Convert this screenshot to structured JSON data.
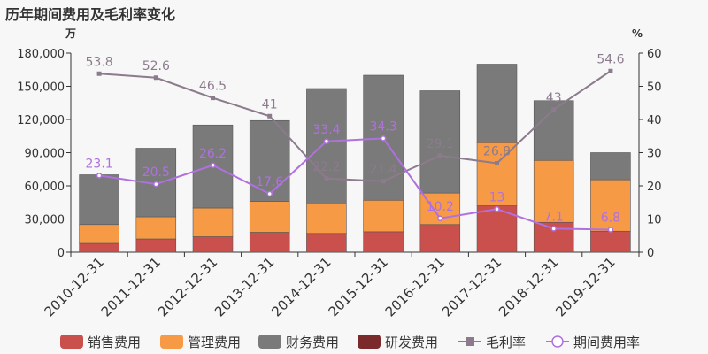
{
  "page": {
    "title": "历年期间费用及毛利率变化"
  },
  "units": {
    "left": "万",
    "right": "%"
  },
  "colors": {
    "sales": "#c9504c",
    "admin": "#f79a46",
    "finance": "#7a7a7a",
    "rd": "#7a2a2a",
    "gross_margin": "#8c7b8c",
    "period_rate": "#b070e0"
  },
  "chart_data": {
    "type": "bar",
    "categories": [
      "2010-12-31",
      "2011-12-31",
      "2012-12-31",
      "2013-12-31",
      "2014-12-31",
      "2015-12-31",
      "2016-12-31",
      "2017-12-31",
      "2018-12-31",
      "2019-12-31"
    ],
    "series": [
      {
        "name": "销售费用",
        "kind": "bar",
        "stack": "cost",
        "values": [
          8000,
          12000,
          14000,
          18000,
          17000,
          18500,
          25000,
          42000,
          27000,
          19000
        ]
      },
      {
        "name": "管理费用",
        "kind": "bar",
        "stack": "cost",
        "values": [
          17000,
          20000,
          26000,
          28000,
          26500,
          28500,
          28500,
          57000,
          56000,
          46500
        ]
      },
      {
        "name": "财务费用",
        "kind": "bar",
        "stack": "cost",
        "values": [
          45000,
          62000,
          75000,
          73000,
          104500,
          113000,
          92500,
          71000,
          54000,
          24500
        ]
      },
      {
        "name": "研发费用",
        "kind": "bar",
        "stack": "cost",
        "values": [
          0,
          0,
          0,
          0,
          0,
          0,
          0,
          0,
          0,
          0
        ]
      },
      {
        "name": "毛利率",
        "kind": "line",
        "axis": "right",
        "values": [
          53.8,
          52.6,
          46.5,
          41,
          22.2,
          21.4,
          29.1,
          26.8,
          43,
          54.6
        ]
      },
      {
        "name": "期间费用率",
        "kind": "line",
        "axis": "right",
        "values": [
          23.1,
          20.5,
          26.2,
          17.6,
          33.4,
          34.3,
          10.2,
          13,
          7.1,
          6.8
        ]
      }
    ],
    "y_left": {
      "min": 0,
      "max": 180000,
      "ticks": [
        "0",
        "30,000",
        "60,000",
        "90,000",
        "120,000",
        "150,000",
        "180,000"
      ]
    },
    "y_right": {
      "min": 0,
      "max": 60,
      "ticks": [
        "0",
        "10",
        "20",
        "30",
        "40",
        "50",
        "60"
      ]
    },
    "legend": {
      "position": "bottom"
    },
    "grid": false
  }
}
